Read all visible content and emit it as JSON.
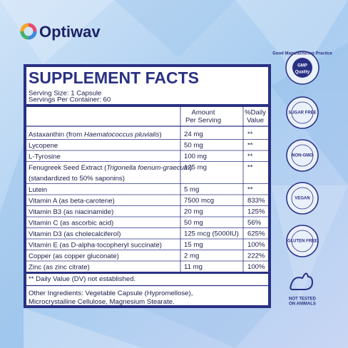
{
  "brand": "Optiwav",
  "panel": {
    "title": "SUPPLEMENT FACTS",
    "serving_size": "Serving Size: 1 Capsule",
    "servings": "Servings Per Container: 60",
    "header": {
      "amount": [
        "Amount",
        "Per Serving"
      ],
      "dv": [
        "%Daily",
        "Value"
      ]
    },
    "rows": [
      {
        "name": [
          "Astaxanthin (from ",
          "Haematococcus pluvialis",
          ")"
        ],
        "amount": "24 mg",
        "dv": "**"
      },
      {
        "name": [
          "Lycopene"
        ],
        "amount": "50 mg",
        "dv": "**"
      },
      {
        "name": [
          "L-Tyrosine"
        ],
        "amount": "100 mg",
        "dv": "**"
      },
      {
        "name": [
          "Fenugreek Seed Extract (",
          "Trigonella foenum-graecum",
          ")"
        ],
        "note": "(standardized to 50% saponins)",
        "amount": "125 mg",
        "dv": "**"
      },
      {
        "name": [
          "Lutein"
        ],
        "amount": "5 mg",
        "dv": "**"
      },
      {
        "name": [
          "Vitamin A (as beta-carotene)"
        ],
        "amount": "7500 mcg",
        "dv": "833%"
      },
      {
        "name": [
          "Vitamin B3 (as niacinamide)"
        ],
        "amount": "20 mg",
        "dv": "125%"
      },
      {
        "name": [
          "Vitamin C (as ascorbic acid)"
        ],
        "amount": "50 mg",
        "dv": "56%"
      },
      {
        "name": [
          "Vitamin D3 (as cholecalciferol)"
        ],
        "amount": "125 mcg (5000IU)",
        "dv": "625%"
      },
      {
        "name": [
          "Vitamin E (as D-alpha-tocopheryl succinate)"
        ],
        "amount": "15 mg",
        "dv": "100%"
      },
      {
        "name": [
          "Copper (as copper gluconate)"
        ],
        "amount": "2 mg",
        "dv": "222%"
      },
      {
        "name": [
          "Zinc (as zinc citrate)"
        ],
        "amount": "11 mg",
        "dv": "100%"
      }
    ],
    "footnote": "** Daily Value (DV) not established.",
    "other_ingredients": [
      "Other Ingredients: Vegetable Capsule (Hypromellose),",
      "Microcrystalline Cellulose, Magnesium Stearate."
    ]
  },
  "badges": {
    "gmp": [
      "Good Manufacturing Practice",
      "GMP",
      "Quality"
    ],
    "sugar_free": "SUGAR FREE",
    "non_gmo": "NON-GMO",
    "vegan": "VEGAN",
    "gluten_free": "GLUTEN FREE",
    "not_tested": [
      "NOT TESTED",
      "ON ANIMALS"
    ]
  }
}
